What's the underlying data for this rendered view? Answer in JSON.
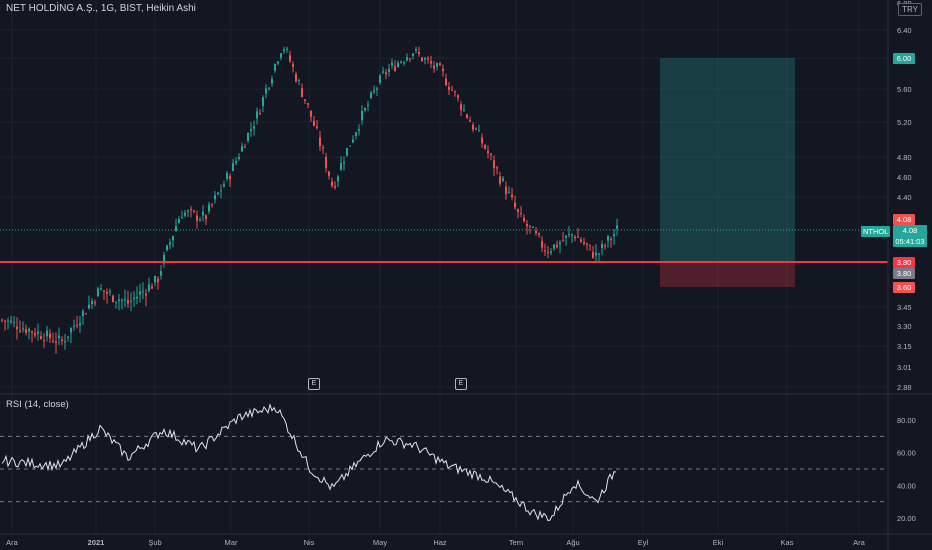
{
  "header": {
    "title": "NET HOLDİNG A.Ş., 1G, BIST, Heikin Ashi",
    "currency": "TRY"
  },
  "price_axis": {
    "ticks": [
      "6.80",
      "6.40",
      "6.00",
      "5.60",
      "5.20",
      "4.80",
      "4.60",
      "4.40",
      "4.08",
      "3.80",
      "3.60",
      "3.45",
      "3.30",
      "3.15",
      "3.01",
      "2.88"
    ],
    "labels": {
      "target": "6.00",
      "entry": "3.80",
      "stop": "3.60",
      "last": "4.08",
      "cursor": "3.80",
      "upper": "4.08",
      "ticker": "NTHOL",
      "countdown": "05:41:03"
    }
  },
  "rsi": {
    "title": "RSI (14, close)",
    "ticks": [
      "80.00",
      "60.00",
      "40.00",
      "20.00"
    ],
    "bands": [
      70,
      50,
      30
    ]
  },
  "time_axis": {
    "labels": [
      "Ara",
      "2021",
      "Şub",
      "Mar",
      "Nis",
      "May",
      "Haz",
      "Tem",
      "Ağu",
      "Eyl",
      "Eki",
      "Kas",
      "Ara"
    ]
  },
  "events": [
    {
      "label": "E",
      "month": "Nis"
    },
    {
      "label": "E",
      "month": "Haz"
    }
  ],
  "colors": {
    "background": "#131722",
    "up": "#26a69a",
    "down": "#ef5350",
    "level_line": "#f23645",
    "rsi_line": "#e0e3eb",
    "profit_zone": "rgba(38,166,154,0.28)",
    "loss_zone": "rgba(242,54,69,0.28)"
  },
  "chart_data": {
    "type": "candlestick",
    "style": "Heikin Ashi",
    "interval": "1G",
    "symbol": "NTHOL",
    "exchange": "BIST",
    "ylim": [
      2.88,
      6.85
    ],
    "horizontal_level": 3.8,
    "position": {
      "entry": 3.8,
      "target": 6.0,
      "stop": 3.6
    },
    "close_trend": [
      {
        "x": "Ara",
        "y": 3.35
      },
      {
        "x": "Ara",
        "y": 3.18
      },
      {
        "x": "2021",
        "y": 3.58
      },
      {
        "x": "2021",
        "y": 3.48
      },
      {
        "x": "Şub",
        "y": 3.65
      },
      {
        "x": "Şub",
        "y": 4.25
      },
      {
        "x": "Şub",
        "y": 4.2
      },
      {
        "x": "Mar",
        "y": 4.7
      },
      {
        "x": "Mar",
        "y": 5.3
      },
      {
        "x": "Mar",
        "y": 6.2
      },
      {
        "x": "Nis",
        "y": 5.3
      },
      {
        "x": "Nis",
        "y": 4.5
      },
      {
        "x": "Nis",
        "y": 5.1
      },
      {
        "x": "May",
        "y": 5.8
      },
      {
        "x": "May",
        "y": 6.1
      },
      {
        "x": "Haz",
        "y": 5.8
      },
      {
        "x": "Haz",
        "y": 5.3
      },
      {
        "x": "Haz",
        "y": 4.8
      },
      {
        "x": "Tem",
        "y": 4.2
      },
      {
        "x": "Tem",
        "y": 3.9
      },
      {
        "x": "Ağu",
        "y": 4.05
      },
      {
        "x": "Ağu",
        "y": 3.85
      },
      {
        "x": "Ağu",
        "y": 4.08
      }
    ],
    "rsi_trend": [
      {
        "x": "Ara",
        "y": 55
      },
      {
        "x": "Ara",
        "y": 52
      },
      {
        "x": "2021",
        "y": 75
      },
      {
        "x": "2021",
        "y": 57
      },
      {
        "x": "Şub",
        "y": 74
      },
      {
        "x": "Şub",
        "y": 62
      },
      {
        "x": "Mar",
        "y": 82
      },
      {
        "x": "Mar",
        "y": 88
      },
      {
        "x": "Nis",
        "y": 50
      },
      {
        "x": "Nis",
        "y": 38
      },
      {
        "x": "Nis",
        "y": 52
      },
      {
        "x": "May",
        "y": 68
      },
      {
        "x": "May",
        "y": 65
      },
      {
        "x": "Haz",
        "y": 52
      },
      {
        "x": "Haz",
        "y": 45
      },
      {
        "x": "Tem",
        "y": 32
      },
      {
        "x": "Tem",
        "y": 23
      },
      {
        "x": "Tem",
        "y": 20
      },
      {
        "x": "Ağu",
        "y": 42
      },
      {
        "x": "Ağu",
        "y": 30
      },
      {
        "x": "Ağu",
        "y": 51
      }
    ]
  }
}
